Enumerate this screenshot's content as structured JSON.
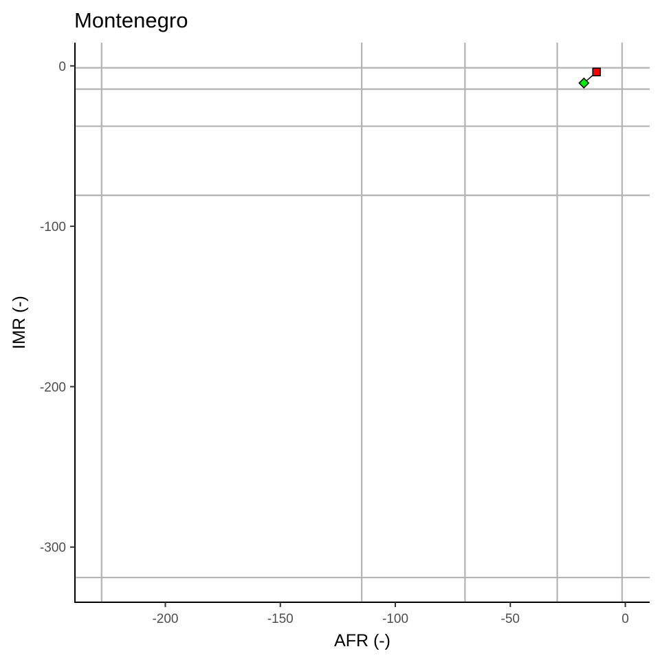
{
  "chart_data": {
    "type": "scatter",
    "title": "Montenegro",
    "xlabel": "AFR (-)",
    "ylabel": "IMR (-)",
    "xlim": [
      -239.3,
      10.6
    ],
    "ylim": [
      -334.4,
      14.5
    ],
    "x_ticks": [
      -200,
      -150,
      -100,
      -50,
      0
    ],
    "x_tick_labels": [
      "-200",
      "-150",
      "-100",
      "-50",
      "0"
    ],
    "y_ticks": [
      0,
      -100,
      -200,
      -300
    ],
    "y_tick_labels": [
      "0",
      "-100",
      "-200",
      "-300"
    ],
    "grid": false,
    "reference_lines": {
      "vertical_x": [
        -227.7,
        -114.6,
        -69.7,
        -29.6,
        -1.4
      ],
      "horizontal_y": [
        -1.2,
        -14.5,
        -37.6,
        -80.7,
        -319.0
      ]
    },
    "points": [
      {
        "x": -12.5,
        "y": -3.8,
        "shape": "square",
        "color": "#ff0000"
      },
      {
        "x": -18.0,
        "y": -10.7,
        "shape": "diamond",
        "color": "#00ee00"
      }
    ],
    "connector": true
  }
}
